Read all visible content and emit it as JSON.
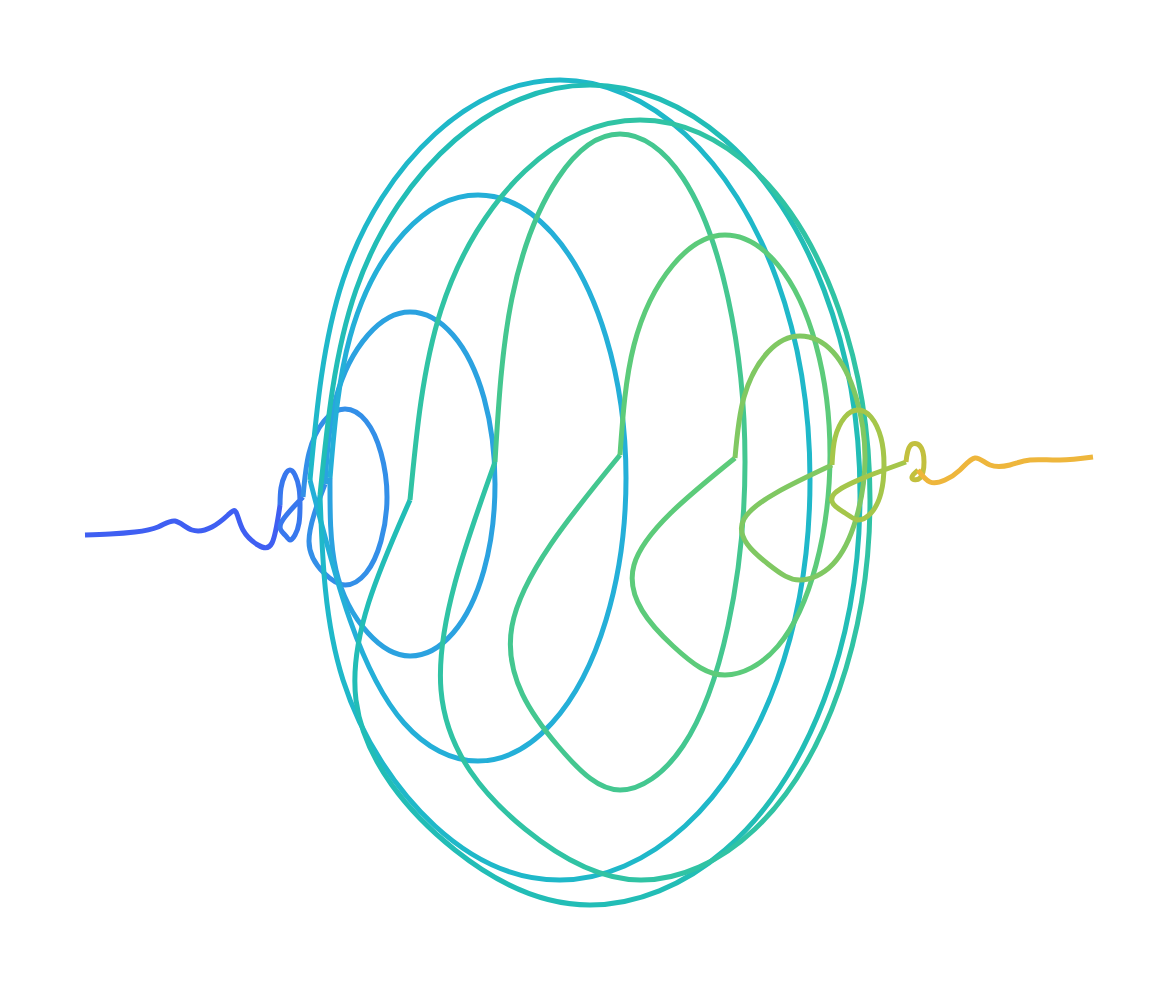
{
  "chart_data": {
    "type": "line",
    "xlim": [
      0,
      1168
    ],
    "ylim": [
      0,
      1004
    ],
    "grid": false,
    "tick_labels": false,
    "series": [
      {
        "color": "#3f5ff2",
        "x": [
          85,
          110,
          135,
          158,
          175,
          192,
          212,
          228,
          236,
          243,
          258,
          272,
          280
        ],
        "values": [
          535,
          534,
          532,
          527,
          521,
          530,
          527,
          515,
          512,
          530,
          545,
          543,
          505
        ]
      },
      {
        "color": "#3878ee",
        "x": [
          280,
          281,
          285,
          290,
          295,
          299,
          300,
          299,
          295,
          290,
          285,
          281,
          303
        ],
        "values": [
          505,
          488,
          475,
          470,
          475,
          488,
          505,
          523,
          535,
          540,
          535,
          523,
          497
        ]
      },
      {
        "color": "#338fe8",
        "x": [
          303,
          309,
          324,
          345,
          366,
          381,
          387,
          381,
          366,
          345,
          324,
          309,
          325
        ],
        "values": [
          497,
          453,
          421,
          409,
          421,
          453,
          497,
          541,
          573,
          585,
          573,
          541,
          484
        ]
      },
      {
        "color": "#2ba2e0",
        "x": [
          325,
          336,
          368,
          410,
          453,
          484,
          495,
          484,
          453,
          410,
          368,
          336,
          330
        ],
        "values": [
          484,
          398,
          335,
          312,
          335,
          398,
          484,
          570,
          633,
          656,
          633,
          570,
          478
        ]
      },
      {
        "color": "#24afd8",
        "x": [
          330,
          350,
          404,
          478,
          552,
          606,
          626,
          606,
          552,
          478,
          404,
          350,
          310
        ],
        "values": [
          478,
          337,
          233,
          195,
          233,
          337,
          478,
          620,
          723,
          761,
          723,
          620,
          480
        ]
      },
      {
        "color": "#1fb8c9",
        "x": [
          310,
          343,
          435,
          560,
          685,
          777,
          810,
          777,
          685,
          560,
          435,
          343,
          320
        ],
        "values": [
          480,
          280,
          134,
          80,
          134,
          280,
          480,
          680,
          826,
          880,
          826,
          680,
          495
        ]
      },
      {
        "color": "#22bdb6",
        "x": [
          320,
          356,
          455,
          590,
          725,
          824,
          860,
          824,
          725,
          590,
          455,
          356,
          410
        ],
        "values": [
          495,
          290,
          140,
          85,
          140,
          290,
          495,
          700,
          850,
          905,
          850,
          700,
          500
        ]
      },
      {
        "color": "#30c3a4",
        "x": [
          410,
          441,
          525,
          640,
          755,
          839,
          870,
          839,
          755,
          640,
          525,
          441,
          495
        ],
        "values": [
          500,
          310,
          171,
          120,
          171,
          310,
          500,
          690,
          829,
          880,
          829,
          690,
          462
        ]
      },
      {
        "color": "#44c790",
        "x": [
          495,
          512,
          558,
          620,
          683,
          728,
          745,
          728,
          683,
          620,
          558,
          512,
          620
        ],
        "values": [
          462,
          298,
          178,
          134,
          178,
          298,
          462,
          626,
          746,
          790,
          746,
          626,
          455
        ]
      },
      {
        "color": "#5ccb7a",
        "x": [
          620,
          634,
          673,
          725,
          778,
          816,
          830,
          816,
          778,
          725,
          673,
          634,
          735
        ],
        "values": [
          455,
          345,
          265,
          235,
          265,
          345,
          455,
          565,
          646,
          675,
          646,
          565,
          458
        ]
      },
      {
        "color": "#80c862",
        "x": [
          735,
          744,
          768,
          800,
          833,
          856,
          865,
          856,
          833,
          800,
          768,
          744,
          832
        ],
        "values": [
          458,
          397,
          352,
          336,
          352,
          397,
          458,
          519,
          564,
          580,
          564,
          519,
          465
        ]
      },
      {
        "color": "#a5c64a",
        "x": [
          832,
          835,
          845,
          858,
          871,
          881,
          884,
          881,
          871,
          858,
          845,
          835,
          906
        ],
        "values": [
          465,
          438,
          417,
          410,
          417,
          438,
          465,
          493,
          513,
          520,
          513,
          493,
          462
        ]
      },
      {
        "color": "#c2c03e",
        "x": [
          906,
          910,
          920,
          924,
          920,
          912,
          918
        ],
        "values": [
          462,
          446,
          446,
          462,
          478,
          478,
          470
        ]
      },
      {
        "color": "#eeb63c",
        "x": [
          918,
          930,
          945,
          960,
          975,
          990,
          1010,
          1030,
          1060,
          1093
        ],
        "values": [
          470,
          482,
          480,
          470,
          458,
          465,
          465,
          460,
          460,
          457
        ]
      }
    ]
  }
}
